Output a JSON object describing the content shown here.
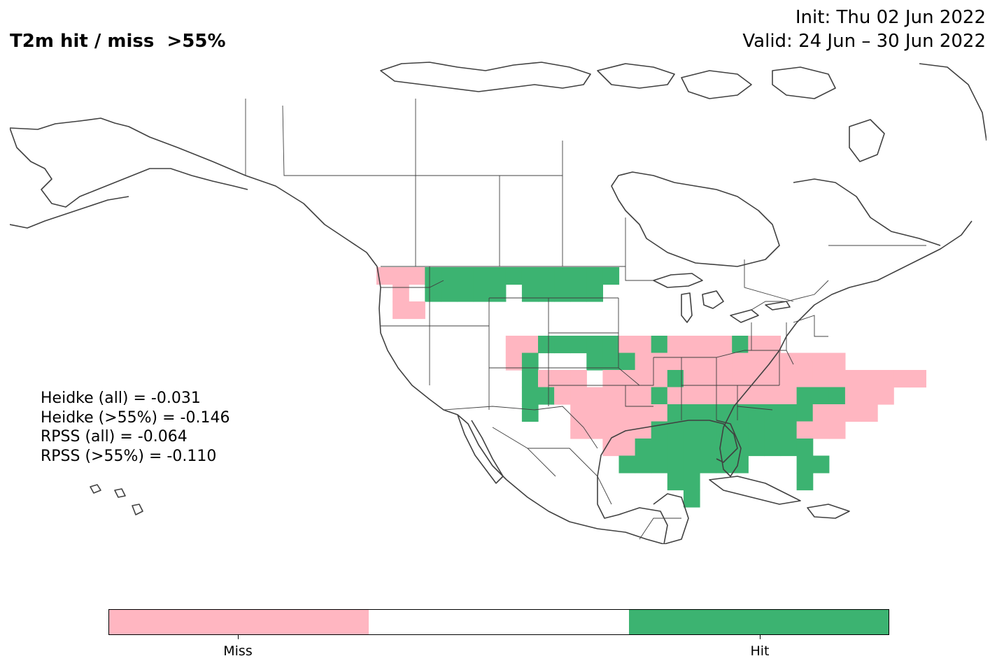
{
  "header": {
    "title": "T2m hit / miss  >55%",
    "init": "Init: Thu 02 Jun 2022",
    "valid": "Valid: 24 Jun – 30 Jun 2022"
  },
  "scores": [
    "Heidke (all) = -0.031",
    "Heidke (>55%) = -0.146",
    "RPSS (all) = -0.064",
    "RPSS (>55%) = -0.110"
  ],
  "colors": {
    "miss": "#ffb6c1",
    "neutral": "#ffffff",
    "hit": "#3cb371",
    "coastline": "#404040",
    "border": "#404040"
  },
  "colorbar": {
    "ticks": [
      "Miss",
      "Hit"
    ],
    "colors": [
      "#ffb6c1",
      "#ffffff",
      "#3cb371"
    ]
  },
  "grid_legend": {
    "0": "miss",
    "1": "hit",
    ".": "no forecast / neutral"
  },
  "grid": [
    "000111111111111",
    ".0.11111.11111.",
    ".00...........",
    ".............",
    "........00111110010000100",
    "........01...1110000000000000",
    ".........1000.00001000000000000000",
    ".........11000000100000000111000",
    ".........1..0000001111111110000",
    "............00000111111111000",
    "..............0011111111111",
    "...............11111111...11",
    "..................11......1",
    "...................1"
  ]
}
